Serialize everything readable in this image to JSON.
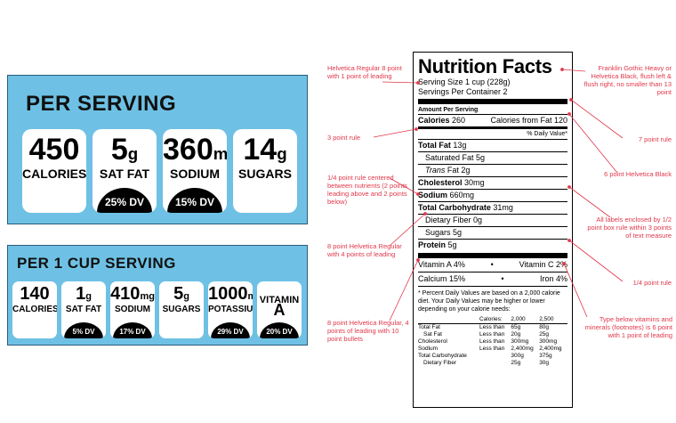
{
  "panel1": {
    "title": "PER SERVING",
    "badges": [
      {
        "value": "450",
        "unit": "",
        "label": "CALORIES",
        "dv": ""
      },
      {
        "value": "5",
        "unit": "g",
        "label": "SAT FAT",
        "dv": "25% DV"
      },
      {
        "value": "360",
        "unit": "mg",
        "label": "SODIUM",
        "dv": "15% DV"
      },
      {
        "value": "14",
        "unit": "g",
        "label": "SUGARS",
        "dv": ""
      }
    ]
  },
  "panel2": {
    "title": "PER 1 CUP SERVING",
    "badges": [
      {
        "value": "140",
        "unit": "",
        "label": "CALORIES",
        "dv": ""
      },
      {
        "value": "1",
        "unit": "g",
        "label": "SAT FAT",
        "dv": "5% DV"
      },
      {
        "value": "410",
        "unit": "mg",
        "label": "SODIUM",
        "dv": "17% DV"
      },
      {
        "value": "5",
        "unit": "g",
        "label": "SUGARS",
        "dv": ""
      },
      {
        "value": "1000",
        "unit": "mg",
        "label": "POTASSIUM",
        "dv": "29% DV"
      },
      {
        "value": "VITAMIN",
        "unit": "",
        "label": "A",
        "dv": "20% DV"
      }
    ]
  },
  "label": {
    "title": "Nutrition Facts",
    "serving_size": "Serving Size 1 cup (228g)",
    "servings": "Servings Per Container 2",
    "amount_per": "Amount Per Serving",
    "calories_label": "Calories",
    "calories": "260",
    "calories_fat": "Calories from Fat 120",
    "dv_header": "% Daily Value*",
    "nutrients": [
      {
        "name": "Total Fat",
        "amount": "13g",
        "bold": true,
        "indent": false
      },
      {
        "name": "Saturated Fat",
        "amount": "5g",
        "bold": false,
        "indent": true
      },
      {
        "name": "Trans",
        "suffix": " Fat",
        "amount": "2g",
        "bold": false,
        "indent": true,
        "italic": true
      },
      {
        "name": "Cholesterol",
        "amount": "30mg",
        "bold": true,
        "indent": false
      },
      {
        "name": "Sodium",
        "amount": "660mg",
        "bold": true,
        "indent": false
      },
      {
        "name": "Total Carbohydrate",
        "amount": "31mg",
        "bold": true,
        "indent": false
      },
      {
        "name": "Dietary Fiber",
        "amount": "0g",
        "bold": false,
        "indent": true
      },
      {
        "name": "Sugars",
        "amount": "5g",
        "bold": false,
        "indent": true
      },
      {
        "name": "Protein",
        "amount": "5g",
        "bold": true,
        "indent": false
      }
    ],
    "vitamins": [
      {
        "left": "Vitamin A  4%",
        "right": "Vitamin C  2%"
      },
      {
        "left": "Calcium  15%",
        "right": "Iron  4%"
      }
    ],
    "footnote": "* Percent Daily Values are based on a 2,000 calorie diet. Your Daily Values may be higher or lower depending on your calorie needs:",
    "table_header": [
      "",
      "Calories:",
      "2,000",
      "2,500"
    ],
    "table_rows": [
      [
        "Total Fat",
        "Less than",
        "65g",
        "80g"
      ],
      [
        "Sat Fat",
        "Less than",
        "20g",
        "25g"
      ],
      [
        "Cholesterol",
        "Less than",
        "300mg",
        "300mg"
      ],
      [
        "Sodium",
        "Less than",
        "2,400mg",
        "2,400mg"
      ],
      [
        "Total Carbohydrate",
        "",
        "300g",
        "375g"
      ],
      [
        "Dietary Fiber",
        "",
        "25g",
        "30g"
      ]
    ]
  },
  "annotations": {
    "a1": "Helvetica Regular 8 point with 1 point of leading",
    "a2": "3 point rule",
    "a3": "1/4 point rule centered between nutrients (2 points leading above and 2 points below)",
    "a4": "8 point Helvetica Regular with 4 points of leading",
    "a5": "8 point Helvetica Regular, 4 points of leading with 10 point bullets",
    "a6": "Franklin Gothic Heavy or Helvetica Black, flush left & flush right, no smaller than 13 point",
    "a7": "7 point rule",
    "a8": "6 point Helvetica Black",
    "a9": "All labels enclosed by 1/2 point box rule within 3 points of text measure",
    "a10": "1/4 point rule",
    "a11": "Type below vitamins and minerals (footnotes) is 6 point with 1 point of leading"
  },
  "colors": {
    "panel_blue": "#6ec1e4",
    "annotation_red": "#e0384a"
  }
}
